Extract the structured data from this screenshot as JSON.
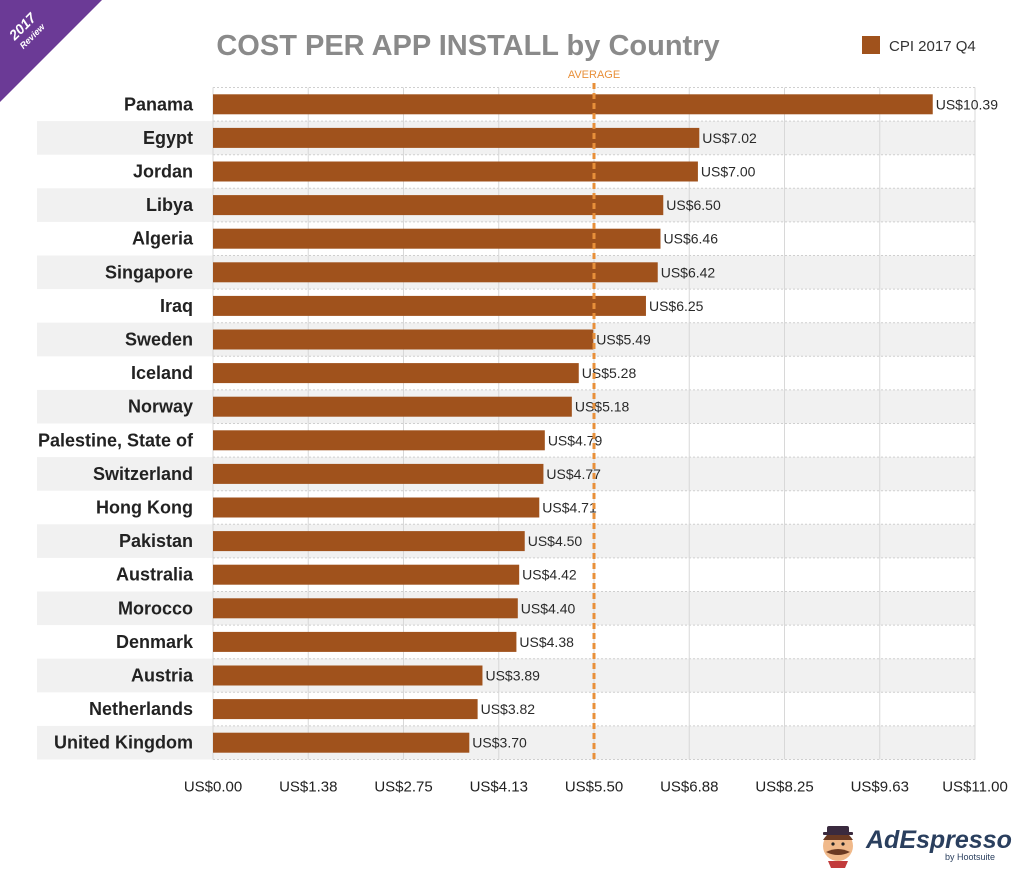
{
  "ribbon": {
    "year": "2017",
    "label": "Review"
  },
  "logo": {
    "name": "AdEspresso",
    "tagline": "by Hootsuite"
  },
  "chart_data": {
    "type": "bar",
    "orientation": "horizontal",
    "title": "COST PER APP INSTALL by Country",
    "legend": {
      "label": "CPI 2017 Q4",
      "placement": "top-right"
    },
    "series_name": "CPI 2017 Q4",
    "bar_color": "#a0521c",
    "average": {
      "label": "AVERAGE",
      "value": 5.5,
      "color": "#e8903a"
    },
    "categories": [
      "Panama",
      "Egypt",
      "Jordan",
      "Libya",
      "Algeria",
      "Singapore",
      "Iraq",
      "Sweden",
      "Iceland",
      "Norway",
      "Palestine, State of",
      "Switzerland",
      "Hong Kong",
      "Pakistan",
      "Australia",
      "Morocco",
      "Denmark",
      "Austria",
      "Netherlands",
      "United Kingdom"
    ],
    "values": [
      10.39,
      7.02,
      7.0,
      6.5,
      6.46,
      6.42,
      6.25,
      5.49,
      5.28,
      5.18,
      4.79,
      4.77,
      4.71,
      4.5,
      4.42,
      4.4,
      4.38,
      3.89,
      3.82,
      3.7
    ],
    "value_labels": [
      "US$10.39",
      "US$7.02",
      "US$7.00",
      "US$6.50",
      "US$6.46",
      "US$6.42",
      "US$6.25",
      "US$5.49",
      "US$5.28",
      "US$5.18",
      "US$4.79",
      "US$4.77",
      "US$4.71",
      "US$4.50",
      "US$4.42",
      "US$4.40",
      "US$4.38",
      "US$3.89",
      "US$3.82",
      "US$3.70"
    ],
    "xlim": [
      0,
      11
    ],
    "xticks": [
      0,
      1.375,
      2.75,
      4.125,
      5.5,
      6.875,
      8.25,
      9.625,
      11
    ],
    "xtick_labels": [
      "US$0.00",
      "US$1.38",
      "US$2.75",
      "US$4.13",
      "US$5.50",
      "US$6.88",
      "US$8.25",
      "US$9.63",
      "US$11.00"
    ],
    "grid": true
  }
}
